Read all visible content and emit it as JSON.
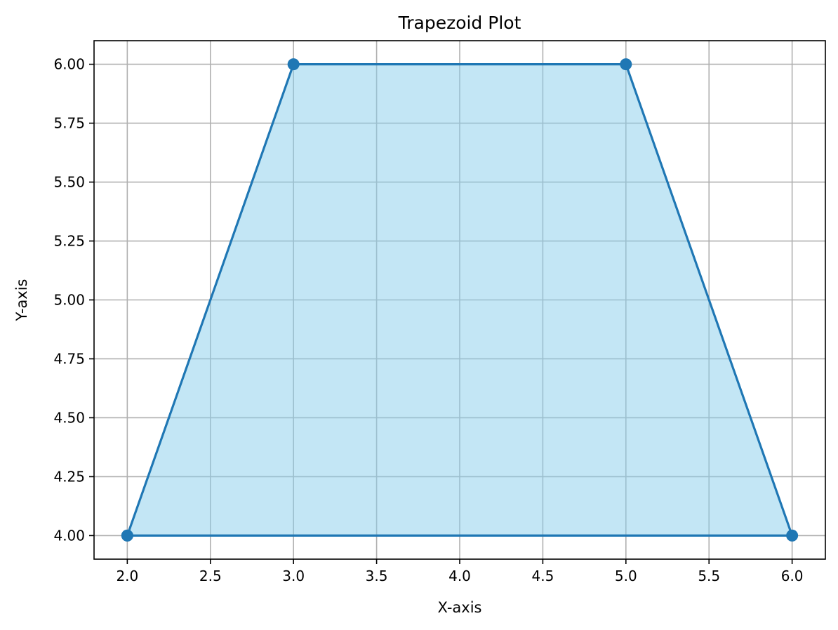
{
  "chart_data": {
    "type": "line",
    "title": "Trapezoid Plot",
    "xlabel": "X-axis",
    "ylabel": "Y-axis",
    "xlim": [
      1.8,
      6.2
    ],
    "ylim": [
      3.9,
      6.1
    ],
    "x_ticks": [
      2.0,
      2.5,
      3.0,
      3.5,
      4.0,
      4.5,
      5.0,
      5.5,
      6.0
    ],
    "x_tick_labels": [
      "2.0",
      "2.5",
      "3.0",
      "3.5",
      "4.0",
      "4.5",
      "5.0",
      "5.5",
      "6.0"
    ],
    "y_ticks": [
      4.0,
      4.25,
      4.5,
      4.75,
      5.0,
      5.25,
      5.5,
      5.75,
      6.0
    ],
    "y_tick_labels": [
      "4.00",
      "4.25",
      "4.50",
      "4.75",
      "5.00",
      "5.25",
      "5.50",
      "5.75",
      "6.00"
    ],
    "grid": true,
    "series": [
      {
        "x": [
          2,
          3,
          5,
          6,
          2
        ],
        "y": [
          4,
          6,
          6,
          4,
          4
        ],
        "marker": "circle",
        "color": "#1f77b4",
        "fill": true,
        "fill_color": "#87ceeb"
      }
    ]
  }
}
